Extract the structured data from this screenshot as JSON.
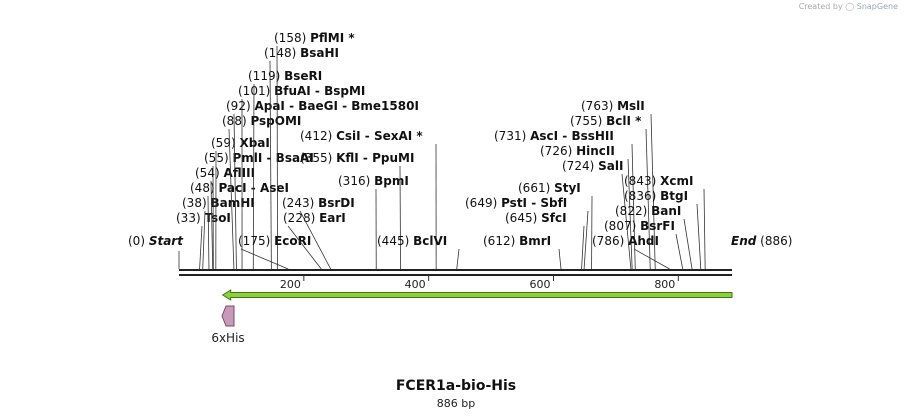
{
  "header": {
    "credit_prefix": "Created by",
    "credit_brand": "SnapGene"
  },
  "sequence": {
    "name": "FCER1a-bio-His",
    "length_label": "886 bp",
    "length": 886
  },
  "colors": {
    "backbone": "#222222",
    "feature_arrow": "#8fcf3e",
    "feature_arrow_stroke": "#3a7a12",
    "his_tag": "#c79bb8",
    "his_tag_stroke": "#7a4a68",
    "lines": "#333333"
  },
  "axis_ticks": [
    "200",
    "400",
    "600",
    "800"
  ],
  "features": [
    {
      "name": "6xHis",
      "start": 33,
      "end": 50,
      "direction": "reverse",
      "icon": "tag-arrow-icon"
    },
    {
      "name": "",
      "start": 70,
      "end": 886,
      "direction": "reverse",
      "icon": "cds-arrow-icon"
    }
  ],
  "sites": [
    {
      "pos": "(0)",
      "name": "Start",
      "italic": true,
      "bp": 0
    },
    {
      "pos": "(33)",
      "name": "TsoI",
      "bp": 33
    },
    {
      "pos": "(38)",
      "name": "BamHI",
      "bp": 38
    },
    {
      "pos": "(48)",
      "name": "PacI  -  AseI",
      "bp": 48
    },
    {
      "pos": "(54)",
      "name": "AflIII",
      "bp": 54
    },
    {
      "pos": "(55)",
      "name": "PmlI  -  BsaAI",
      "bp": 55
    },
    {
      "pos": "(59)",
      "name": "XbaI",
      "bp": 59
    },
    {
      "pos": "(88)",
      "name": "PspOMI",
      "bp": 88
    },
    {
      "pos": "(92)",
      "name": "ApaI  -  BaeGI  -  Bme1580I",
      "bp": 92
    },
    {
      "pos": "(101)",
      "name": "BfuAI  -  BspMI",
      "bp": 101
    },
    {
      "pos": "(119)",
      "name": "BseRI",
      "bp": 119
    },
    {
      "pos": "(148)",
      "name": "BsaHI",
      "bp": 148
    },
    {
      "pos": "(158)",
      "name": "PflMI *",
      "bp": 158
    },
    {
      "pos": "(175)",
      "name": "EcoRI",
      "bp": 175
    },
    {
      "pos": "(228)",
      "name": "EarI",
      "bp": 228
    },
    {
      "pos": "(243)",
      "name": "BsrDI",
      "bp": 243
    },
    {
      "pos": "(316)",
      "name": "BpmI",
      "bp": 316
    },
    {
      "pos": "(355)",
      "name": "KflI  -  PpuMI",
      "bp": 355
    },
    {
      "pos": "(412)",
      "name": "CsiI  -  SexAI *",
      "bp": 412
    },
    {
      "pos": "(445)",
      "name": "BclVI",
      "bp": 445
    },
    {
      "pos": "(612)",
      "name": "BmrI",
      "bp": 612
    },
    {
      "pos": "(645)",
      "name": "SfcI",
      "bp": 645
    },
    {
      "pos": "(649)",
      "name": "PstI  -  SbfI",
      "bp": 649
    },
    {
      "pos": "(661)",
      "name": "StyI",
      "bp": 661
    },
    {
      "pos": "(724)",
      "name": "SalI",
      "bp": 724
    },
    {
      "pos": "(726)",
      "name": "HincII",
      "bp": 726
    },
    {
      "pos": "(731)",
      "name": "AscI  -  BssHII",
      "bp": 731
    },
    {
      "pos": "(755)",
      "name": "BclI *",
      "bp": 755
    },
    {
      "pos": "(763)",
      "name": "MslI",
      "bp": 763
    },
    {
      "pos": "(786)",
      "name": "AhdI",
      "bp": 786
    },
    {
      "pos": "(807)",
      "name": "BsrFI",
      "bp": 807
    },
    {
      "pos": "(822)",
      "name": "BanI",
      "bp": 822
    },
    {
      "pos": "(836)",
      "name": "BtgI",
      "bp": 836
    },
    {
      "pos": "(843)",
      "name": "XcmI",
      "bp": 843
    },
    {
      "pos": "(886)",
      "name": "End",
      "italic": true,
      "bp": 886
    }
  ]
}
